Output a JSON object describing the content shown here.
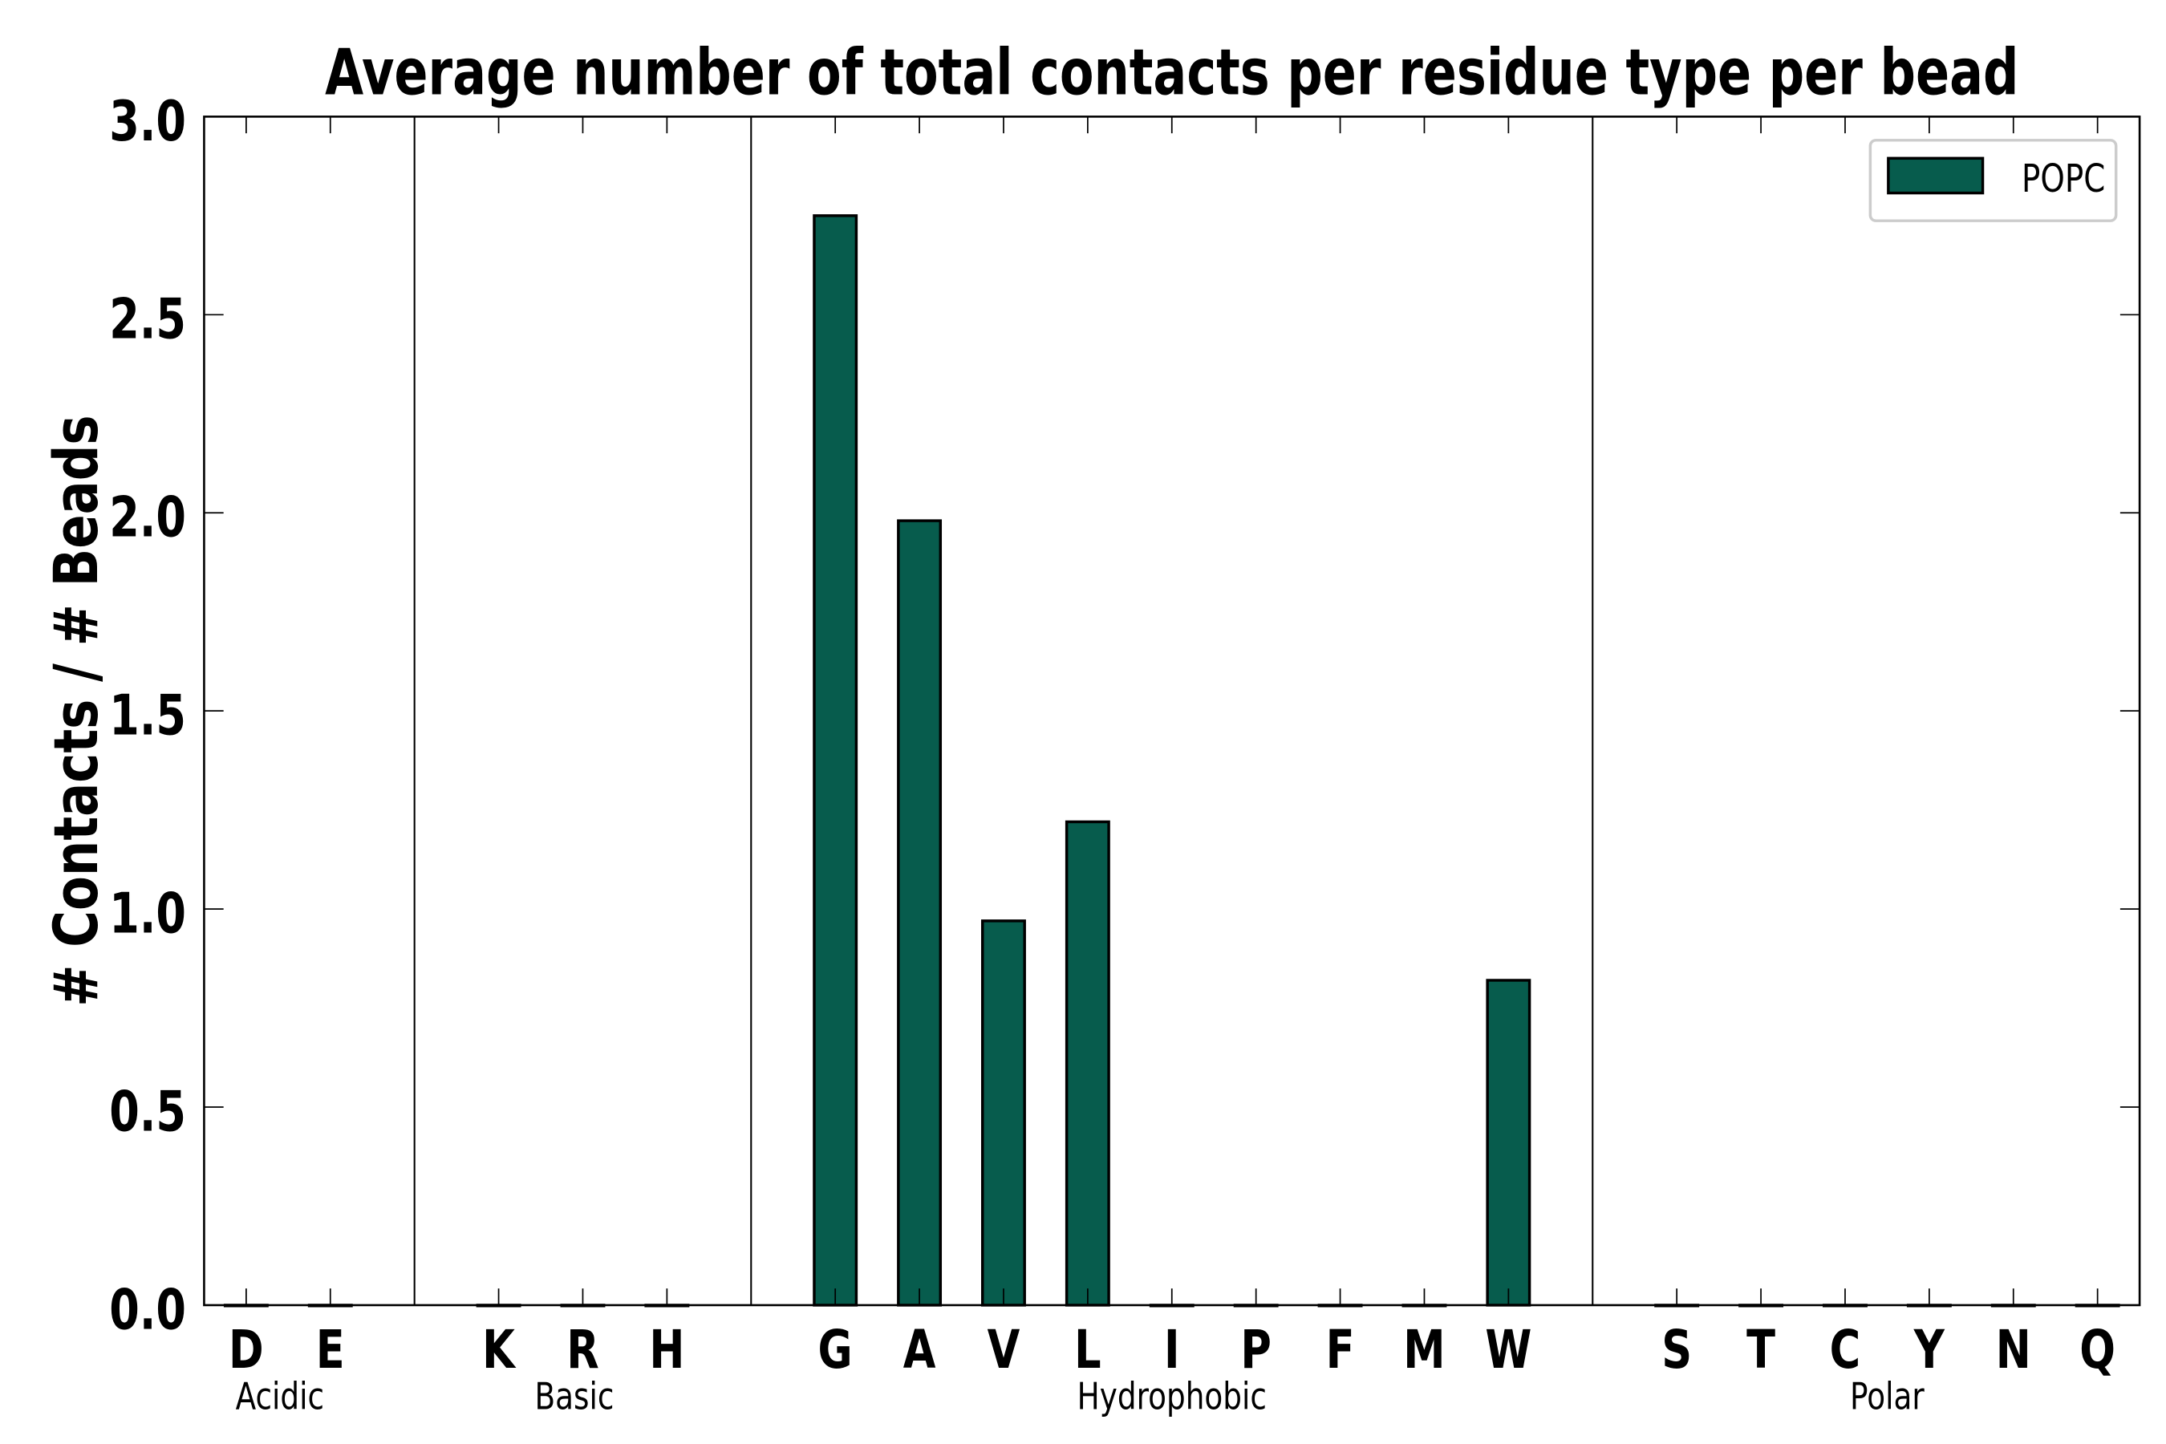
{
  "chart_data": {
    "type": "bar",
    "title": "Average number of total contacts per residue type per bead",
    "xlabel": "",
    "ylabel": "# Contacts / # Beads",
    "ylim": [
      0,
      3.0
    ],
    "yticks": [
      "0.0",
      "0.5",
      "1.0",
      "1.5",
      "2.0",
      "2.5",
      "3.0"
    ],
    "grid": false,
    "legend_position": "top-right",
    "categories": [
      "D",
      "E",
      "K",
      "R",
      "H",
      "G",
      "A",
      "V",
      "L",
      "I",
      "P",
      "F",
      "M",
      "W",
      "S",
      "T",
      "C",
      "Y",
      "N",
      "Q"
    ],
    "category_positions": [
      0,
      1,
      3,
      4,
      5,
      7,
      8,
      9,
      10,
      11,
      12,
      13,
      14,
      15,
      17,
      18,
      19,
      20,
      21,
      22
    ],
    "separators": [
      2,
      6,
      16
    ],
    "groups": [
      {
        "label": "Acidic",
        "center": 0.4
      },
      {
        "label": "Basic",
        "center": 3.9
      },
      {
        "label": "Hydrophobic",
        "center": 11
      },
      {
        "label": "Polar",
        "center": 19.5
      }
    ],
    "series": [
      {
        "name": "POPC",
        "color": "#075c4d",
        "values": [
          0,
          0,
          0,
          0,
          0,
          2.75,
          1.98,
          0.97,
          1.22,
          0,
          0,
          0,
          0,
          0.82,
          0,
          0,
          0,
          0,
          0,
          0
        ]
      }
    ],
    "xlim": [
      -0.5,
      22.5
    ]
  }
}
